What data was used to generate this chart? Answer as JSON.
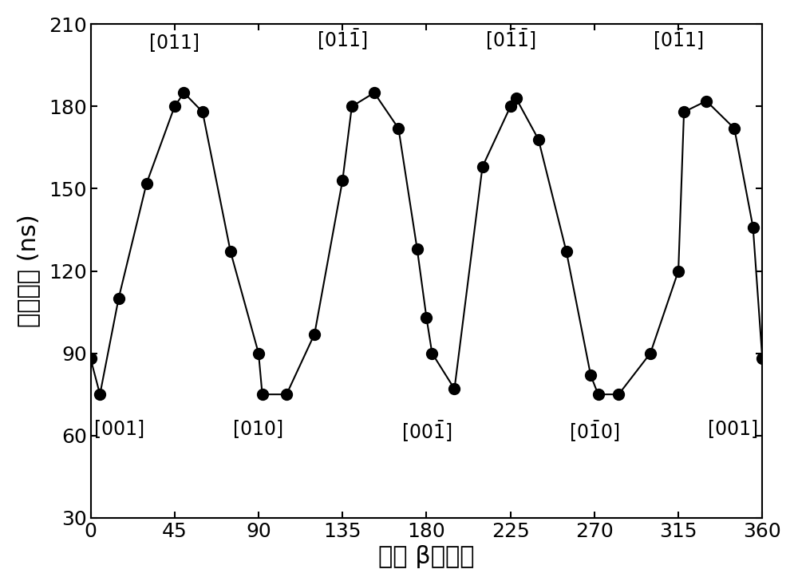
{
  "x": [
    0,
    5,
    15,
    30,
    45,
    50,
    60,
    75,
    90,
    92,
    105,
    120,
    135,
    140,
    152,
    165,
    175,
    180,
    183,
    195,
    210,
    225,
    228,
    240,
    255,
    268,
    272,
    283,
    300,
    315,
    318,
    330,
    345,
    355,
    360
  ],
  "y": [
    88,
    75,
    110,
    152,
    180,
    185,
    178,
    127,
    90,
    75,
    75,
    97,
    153,
    180,
    185,
    172,
    128,
    103,
    90,
    77,
    158,
    180,
    183,
    168,
    127,
    82,
    75,
    75,
    90,
    120,
    178,
    182,
    172,
    136,
    88
  ],
  "ylim": [
    30,
    210
  ],
  "xlim": [
    0,
    360
  ],
  "yticks": [
    30,
    60,
    90,
    120,
    150,
    180,
    210
  ],
  "xticks": [
    0,
    45,
    90,
    135,
    180,
    225,
    270,
    315,
    360
  ],
  "line_color": "#000000",
  "marker_color": "#000000",
  "marker_size": 10,
  "line_width": 1.5,
  "background_color": "#ffffff",
  "label_fontsize": 22,
  "tick_fontsize": 18,
  "annotation_fontsize": 17
}
